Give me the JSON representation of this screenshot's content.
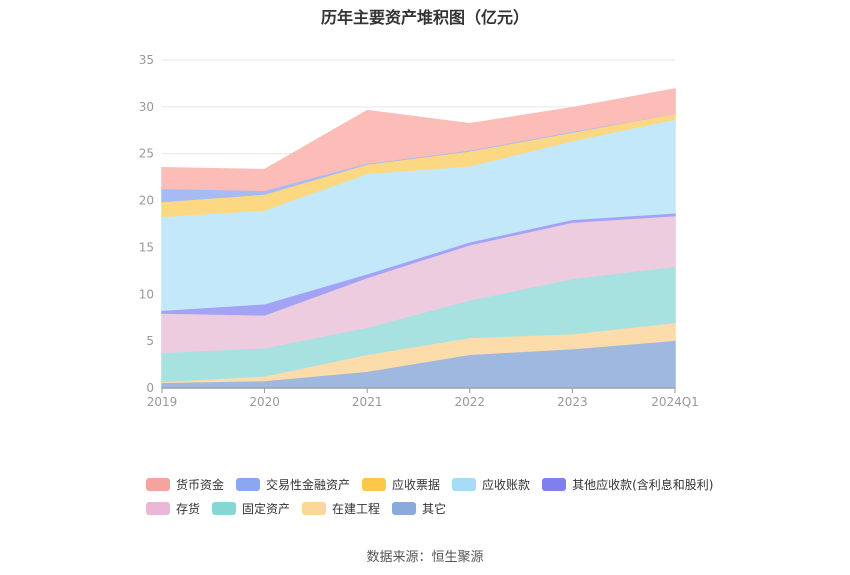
{
  "chart_data": {
    "type": "area",
    "stacked": true,
    "title": "历年主要资产堆积图（亿元）",
    "categories": [
      "2019",
      "2020",
      "2021",
      "2022",
      "2023",
      "2024Q1"
    ],
    "ylim": [
      0,
      35
    ],
    "yticks": [
      0,
      5,
      10,
      15,
      20,
      25,
      30,
      35
    ],
    "grid": true,
    "legend_position": "bottom",
    "series": [
      {
        "name": "其它",
        "color": "#9fb8e0",
        "values": [
          0.6,
          0.8,
          1.8,
          3.6,
          4.2,
          5.1
        ]
      },
      {
        "name": "在建工程",
        "color": "#fbdcaa",
        "values": [
          0.1,
          0.5,
          1.8,
          1.8,
          1.6,
          1.9
        ]
      },
      {
        "name": "固定资产",
        "color": "#a7e2e0",
        "values": [
          3.1,
          3.0,
          2.9,
          4.0,
          5.9,
          6.0
        ]
      },
      {
        "name": "存货",
        "color": "#eeccdf",
        "values": [
          4.2,
          3.5,
          5.3,
          5.9,
          6.0,
          5.4
        ]
      },
      {
        "name": "其他应收款(含利息和股利)",
        "color": "#a3a3f5",
        "values": [
          0.3,
          1.2,
          0.4,
          0.3,
          0.3,
          0.3
        ]
      },
      {
        "name": "应收账款",
        "color": "#c2e8fa",
        "values": [
          10.0,
          10.0,
          10.7,
          8.1,
          8.4,
          10.0
        ]
      },
      {
        "name": "应收票据",
        "color": "#fdd882",
        "values": [
          1.6,
          1.7,
          1.0,
          1.6,
          0.9,
          0.6
        ]
      },
      {
        "name": "交易性金融资产",
        "color": "#a6bbf4",
        "values": [
          1.4,
          0.4,
          0.1,
          0.1,
          0.1,
          0.0
        ]
      },
      {
        "name": "货币资金",
        "color": "#fcbcb7",
        "values": [
          2.2,
          2.2,
          5.6,
          2.8,
          2.5,
          2.6
        ]
      }
    ]
  },
  "legend": {
    "row1": [
      {
        "name": "货币资金",
        "color": "#f4a49e"
      },
      {
        "name": "交易性金融资产",
        "color": "#8aa7f2"
      },
      {
        "name": "应收票据",
        "color": "#fcc84a"
      },
      {
        "name": "应收账款",
        "color": "#a7dcf6"
      },
      {
        "name": "其他应收款(含利息和股利)",
        "color": "#7f7ff0"
      }
    ],
    "row2": [
      {
        "name": "存货",
        "color": "#eab8d6"
      },
      {
        "name": "固定资产",
        "color": "#88d6d2"
      },
      {
        "name": "在建工程",
        "color": "#fbd79a"
      },
      {
        "name": "其它",
        "color": "#8aaadb"
      }
    ]
  },
  "source": "数据来源：恒生聚源"
}
